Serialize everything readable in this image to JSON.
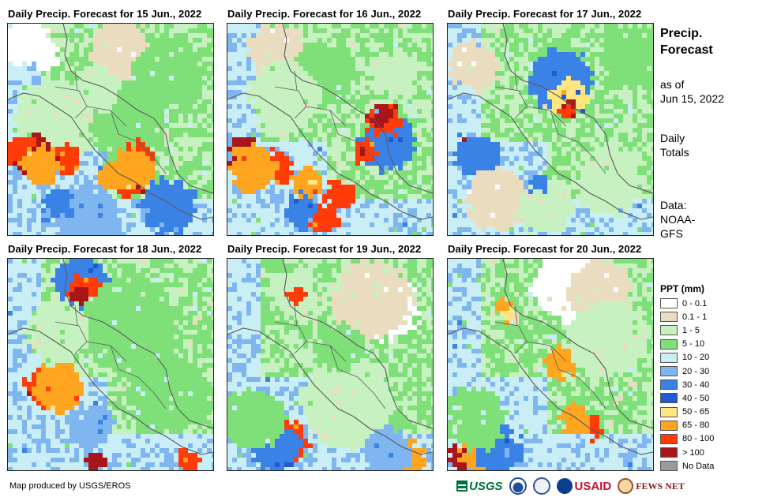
{
  "panels": [
    {
      "title": "Daily Precip. Forecast for 15 Jun., 2022",
      "date": "2022-06-15"
    },
    {
      "title": "Daily Precip. Forecast for 16 Jun., 2022",
      "date": "2022-06-16"
    },
    {
      "title": "Daily Precip. Forecast for 17 Jun., 2022",
      "date": "2022-06-17"
    },
    {
      "title": "Daily Precip. Forecast for 18 Jun., 2022",
      "date": "2022-06-18"
    },
    {
      "title": "Daily Precip. Forecast for 19 Jun., 2022",
      "date": "2022-06-19"
    },
    {
      "title": "Daily Precip. Forecast for 20 Jun., 2022",
      "date": "2022-06-20"
    }
  ],
  "sidebar": {
    "title_line1": "Precip.",
    "title_line2": "Forecast",
    "asof_line1": "as of",
    "asof_line2": "Jun 15, 2022",
    "daily_line1": "Daily",
    "daily_line2": "Totals",
    "data_line1": "Data:",
    "data_line2": "NOAA-",
    "data_line3": "GFS"
  },
  "legend": {
    "title": "PPT (mm)",
    "items": [
      {
        "label": "0 - 0.1",
        "color": "#ffffff"
      },
      {
        "label": "0.1 - 1",
        "color": "#eadcbf"
      },
      {
        "label": "1 - 5",
        "color": "#c7f1c0"
      },
      {
        "label": "5 - 10",
        "color": "#7fe07a"
      },
      {
        "label": "10 - 20",
        "color": "#c9eef6"
      },
      {
        "label": "20 - 30",
        "color": "#7fb6ef"
      },
      {
        "label": "30 - 40",
        "color": "#3b82e6"
      },
      {
        "label": "40 - 50",
        "color": "#1f5bd0"
      },
      {
        "label": "50 - 65",
        "color": "#ffe680"
      },
      {
        "label": "65 - 80",
        "color": "#ffa51f"
      },
      {
        "label": "80 - 100",
        "color": "#ff3b0a"
      },
      {
        "label": "> 100",
        "color": "#a8161a"
      },
      {
        "label": "No Data",
        "color": "#9a9a9a"
      }
    ]
  },
  "footer": {
    "credit": "Map produced by USGS/EROS",
    "logo_usgs": "USGS",
    "logo_usaid": "USAID",
    "logo_fews": "FEWS NET"
  }
}
